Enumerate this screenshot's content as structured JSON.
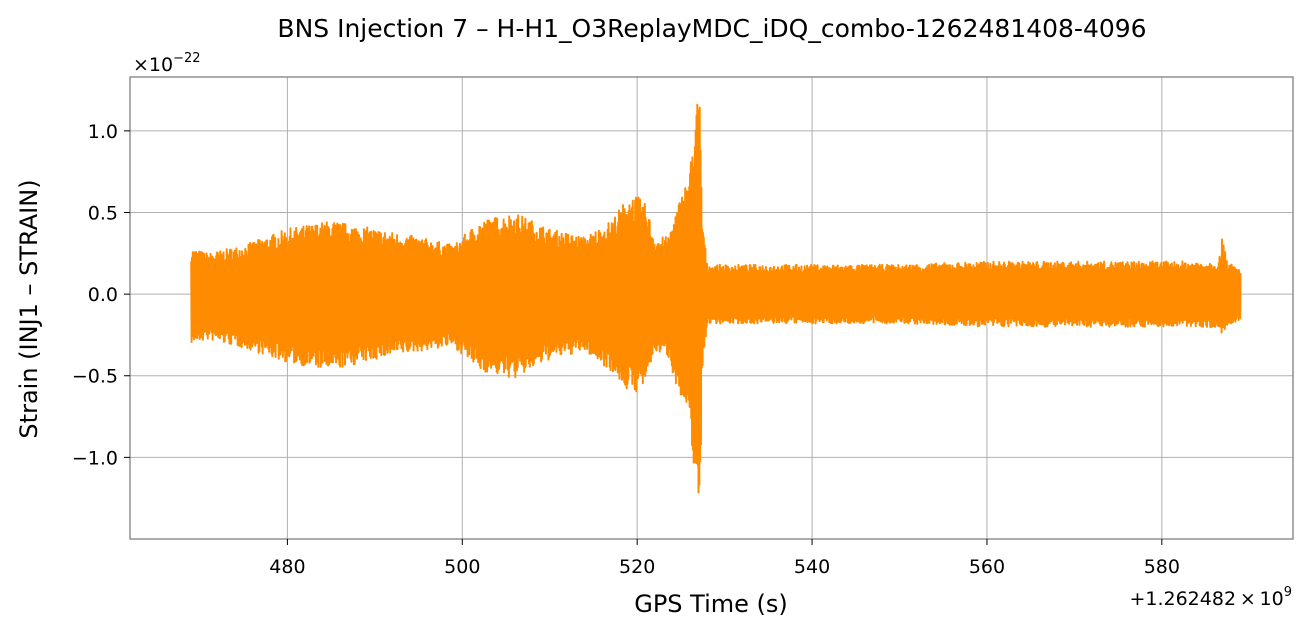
{
  "chart_data": {
    "type": "line",
    "title": "BNS Injection 7 – H-H1_O3ReplayMDC_iDQ_combo-1262481408-4096",
    "xlabel": "GPS Time (s)",
    "ylabel": "Strain (INJ1 – STRAIN)",
    "x_offset_label": "+1.262482 × 10",
    "x_offset_exp": "9",
    "y_scale_label": "×10",
    "y_scale_exp": "−22",
    "xlim": [
      462,
      595
    ],
    "ylim": [
      -1.5,
      1.33
    ],
    "xticks": [
      480,
      500,
      520,
      540,
      560,
      580
    ],
    "xtick_labels": [
      "480",
      "500",
      "520",
      "540",
      "560",
      "580"
    ],
    "yticks": [
      -1.0,
      -0.5,
      0.0,
      0.5,
      1.0
    ],
    "ytick_labels": [
      "−1.0",
      "−0.5",
      "0.0",
      "0.5",
      "1.0"
    ],
    "grid": true,
    "color": "#ff8c00",
    "series": [
      {
        "x": [
          469,
          471,
          475,
          480,
          485,
          490,
          495,
          499,
          502,
          506,
          510,
          514,
          517,
          519,
          520,
          521,
          522,
          523.5,
          525,
          526,
          526.8,
          527.2,
          527.4,
          528,
          532,
          540,
          550,
          560,
          570,
          580,
          585,
          586.5,
          587,
          587.5,
          589
        ],
        "upper": [
          0.28,
          0.25,
          0.3,
          0.4,
          0.45,
          0.4,
          0.35,
          0.3,
          0.45,
          0.5,
          0.4,
          0.35,
          0.45,
          0.6,
          0.6,
          0.55,
          0.35,
          0.35,
          0.6,
          0.75,
          1.2,
          1.18,
          0.5,
          0.18,
          0.18,
          0.18,
          0.18,
          0.2,
          0.2,
          0.2,
          0.2,
          0.2,
          0.38,
          0.2,
          0.15
        ],
        "lower": [
          -0.3,
          -0.28,
          -0.33,
          -0.42,
          -0.47,
          -0.4,
          -0.35,
          -0.32,
          -0.47,
          -0.52,
          -0.4,
          -0.35,
          -0.47,
          -0.6,
          -0.6,
          -0.55,
          -0.35,
          -0.38,
          -0.65,
          -0.8,
          -1.22,
          -1.35,
          -0.5,
          -0.18,
          -0.18,
          -0.18,
          -0.18,
          -0.2,
          -0.2,
          -0.2,
          -0.2,
          -0.22,
          -0.25,
          -0.2,
          -0.17
        ]
      }
    ]
  }
}
